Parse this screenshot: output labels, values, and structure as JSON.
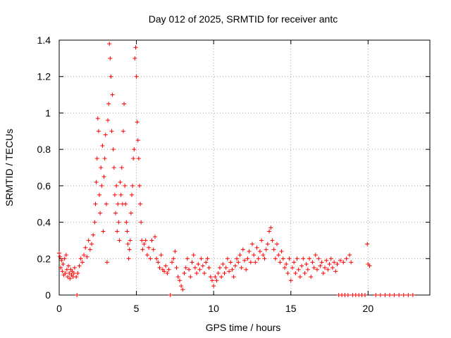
{
  "chart_data": {
    "type": "scatter",
    "title": "Day 012 of 2025, SRMTID for receiver antc",
    "xlabel": "GPS time / hours",
    "ylabel": "SRMTID / TECUs",
    "xlim": [
      0,
      24
    ],
    "ylim": [
      0,
      1.4
    ],
    "x_ticks": [
      0,
      5,
      10,
      15,
      20
    ],
    "y_ticks": [
      0,
      0.2,
      0.4,
      0.6,
      0.8,
      1,
      1.2,
      1.4
    ],
    "y_tick_labels": [
      "0",
      "0.2",
      "0.4",
      "0.6",
      "0.8",
      "1",
      "1.2",
      "1.4"
    ],
    "grid": true,
    "marker": "plus",
    "color": "#ff0000",
    "series": [
      {
        "name": "SRMTID",
        "points": [
          [
            0.0,
            0.23
          ],
          [
            0.05,
            0.21
          ],
          [
            0.1,
            0.15
          ],
          [
            0.15,
            0.19
          ],
          [
            0.2,
            0.13
          ],
          [
            0.25,
            0.17
          ],
          [
            0.3,
            0.11
          ],
          [
            0.35,
            0.2
          ],
          [
            0.4,
            0.12
          ],
          [
            0.45,
            0.22
          ],
          [
            0.5,
            0.14
          ],
          [
            0.55,
            0.1
          ],
          [
            0.6,
            0.16
          ],
          [
            0.65,
            0.12
          ],
          [
            0.7,
            0.09
          ],
          [
            0.75,
            0.14
          ],
          [
            0.8,
            0.11
          ],
          [
            0.85,
            0.13
          ],
          [
            0.9,
            0.1
          ],
          [
            0.95,
            0.12
          ],
          [
            1.0,
            0.15
          ],
          [
            1.1,
            0.1
          ],
          [
            1.15,
            0.0
          ],
          [
            1.2,
            0.12
          ],
          [
            1.3,
            0.16
          ],
          [
            1.4,
            0.2
          ],
          [
            1.5,
            0.18
          ],
          [
            1.6,
            0.22
          ],
          [
            1.7,
            0.26
          ],
          [
            1.8,
            0.21
          ],
          [
            1.9,
            0.3
          ],
          [
            2.0,
            0.25
          ],
          [
            2.1,
            0.28
          ],
          [
            2.2,
            0.33
          ],
          [
            2.3,
            0.4
          ],
          [
            2.35,
            0.5
          ],
          [
            2.4,
            0.62
          ],
          [
            2.45,
            0.75
          ],
          [
            2.5,
            0.97
          ],
          [
            2.55,
            0.9
          ],
          [
            2.6,
            0.55
          ],
          [
            2.65,
            0.45
          ],
          [
            2.7,
            0.7
          ],
          [
            2.75,
            0.6
          ],
          [
            2.8,
            0.82
          ],
          [
            2.85,
            0.35
          ],
          [
            2.9,
            0.65
          ],
          [
            2.95,
            0.75
          ],
          [
            3.0,
            0.88
          ],
          [
            3.05,
            0.5
          ],
          [
            3.1,
            0.18
          ],
          [
            3.15,
            0.96
          ],
          [
            3.2,
            1.05
          ],
          [
            3.25,
            1.38
          ],
          [
            3.3,
            1.3
          ],
          [
            3.35,
            1.2
          ],
          [
            3.4,
            0.9
          ],
          [
            3.45,
            1.1
          ],
          [
            3.5,
            0.8
          ],
          [
            3.55,
            0.7
          ],
          [
            3.6,
            0.55
          ],
          [
            3.65,
            0.45
          ],
          [
            3.7,
            0.6
          ],
          [
            3.75,
            0.35
          ],
          [
            3.8,
            0.5
          ],
          [
            3.85,
            0.4
          ],
          [
            3.9,
            0.3
          ],
          [
            3.95,
            0.62
          ],
          [
            4.0,
            0.55
          ],
          [
            4.05,
            0.7
          ],
          [
            4.1,
            0.5
          ],
          [
            4.15,
            0.9
          ],
          [
            4.2,
            1.05
          ],
          [
            4.25,
            0.6
          ],
          [
            4.3,
            0.5
          ],
          [
            4.35,
            0.4
          ],
          [
            4.4,
            0.35
          ],
          [
            4.45,
            0.28
          ],
          [
            4.5,
            0.2
          ],
          [
            4.55,
            0.25
          ],
          [
            4.6,
            0.3
          ],
          [
            4.65,
            0.45
          ],
          [
            4.7,
            0.55
          ],
          [
            4.75,
            0.6
          ],
          [
            4.8,
            0.75
          ],
          [
            4.85,
            0.8
          ],
          [
            4.9,
            1.3
          ],
          [
            4.95,
            1.36
          ],
          [
            5.0,
            1.2
          ],
          [
            5.05,
            0.95
          ],
          [
            5.1,
            0.85
          ],
          [
            5.15,
            0.75
          ],
          [
            5.2,
            0.6
          ],
          [
            5.25,
            0.5
          ],
          [
            5.3,
            0.4
          ],
          [
            5.35,
            0.3
          ],
          [
            5.4,
            0.25
          ],
          [
            5.5,
            0.28
          ],
          [
            5.6,
            0.3
          ],
          [
            5.7,
            0.22
          ],
          [
            5.8,
            0.26
          ],
          [
            5.9,
            0.2
          ],
          [
            6.0,
            0.3
          ],
          [
            6.1,
            0.25
          ],
          [
            6.2,
            0.32
          ],
          [
            6.3,
            0.2
          ],
          [
            6.4,
            0.18
          ],
          [
            6.5,
            0.15
          ],
          [
            6.6,
            0.22
          ],
          [
            6.7,
            0.14
          ],
          [
            6.8,
            0.13
          ],
          [
            6.9,
            0.16
          ],
          [
            7.0,
            0.12
          ],
          [
            7.1,
            0.14
          ],
          [
            7.2,
            0.0
          ],
          [
            7.3,
            0.18
          ],
          [
            7.4,
            0.2
          ],
          [
            7.5,
            0.24
          ],
          [
            7.6,
            0.15
          ],
          [
            7.7,
            0.1
          ],
          [
            7.8,
            0.08
          ],
          [
            7.9,
            0.05
          ],
          [
            8.0,
            0.03
          ],
          [
            8.1,
            0.12
          ],
          [
            8.2,
            0.15
          ],
          [
            8.3,
            0.2
          ],
          [
            8.4,
            0.14
          ],
          [
            8.5,
            0.1
          ],
          [
            8.6,
            0.18
          ],
          [
            8.7,
            0.22
          ],
          [
            8.8,
            0.15
          ],
          [
            8.9,
            0.12
          ],
          [
            9.0,
            0.17
          ],
          [
            9.1,
            0.14
          ],
          [
            9.2,
            0.2
          ],
          [
            9.3,
            0.16
          ],
          [
            9.4,
            0.12
          ],
          [
            9.5,
            0.18
          ],
          [
            9.6,
            0.2
          ],
          [
            9.7,
            0.15
          ],
          [
            9.8,
            0.1
          ],
          [
            9.9,
            0.08
          ],
          [
            10.0,
            0.05
          ],
          [
            10.1,
            0.1
          ],
          [
            10.2,
            0.08
          ],
          [
            10.3,
            0.12
          ],
          [
            10.4,
            0.15
          ],
          [
            10.5,
            0.1
          ],
          [
            10.6,
            0.17
          ],
          [
            10.7,
            0.12
          ],
          [
            10.8,
            0.15
          ],
          [
            10.9,
            0.2
          ],
          [
            11.0,
            0.13
          ],
          [
            11.1,
            0.18
          ],
          [
            11.2,
            0.14
          ],
          [
            11.3,
            0.1
          ],
          [
            11.4,
            0.16
          ],
          [
            11.5,
            0.2
          ],
          [
            11.6,
            0.18
          ],
          [
            11.7,
            0.22
          ],
          [
            11.8,
            0.15
          ],
          [
            11.9,
            0.25
          ],
          [
            12.0,
            0.19
          ],
          [
            12.1,
            0.14
          ],
          [
            12.2,
            0.2
          ],
          [
            12.3,
            0.24
          ],
          [
            12.4,
            0.18
          ],
          [
            12.5,
            0.28
          ],
          [
            12.6,
            0.22
          ],
          [
            12.7,
            0.18
          ],
          [
            12.8,
            0.26
          ],
          [
            12.9,
            0.2
          ],
          [
            13.0,
            0.24
          ],
          [
            13.1,
            0.3
          ],
          [
            13.2,
            0.22
          ],
          [
            13.3,
            0.2
          ],
          [
            13.4,
            0.25
          ],
          [
            13.5,
            0.28
          ],
          [
            13.6,
            0.35
          ],
          [
            13.7,
            0.37
          ],
          [
            13.8,
            0.3
          ],
          [
            13.9,
            0.25
          ],
          [
            14.0,
            0.2
          ],
          [
            14.1,
            0.28
          ],
          [
            14.2,
            0.22
          ],
          [
            14.3,
            0.18
          ],
          [
            14.4,
            0.24
          ],
          [
            14.5,
            0.2
          ],
          [
            14.6,
            0.15
          ],
          [
            14.7,
            0.17
          ],
          [
            14.8,
            0.12
          ],
          [
            14.9,
            0.2
          ],
          [
            15.0,
            0.08
          ],
          [
            15.1,
            0.15
          ],
          [
            15.2,
            0.18
          ],
          [
            15.3,
            0.12
          ],
          [
            15.4,
            0.2
          ],
          [
            15.5,
            0.14
          ],
          [
            15.6,
            0.1
          ],
          [
            15.7,
            0.16
          ],
          [
            15.8,
            0.2
          ],
          [
            15.9,
            0.12
          ],
          [
            16.0,
            0.17
          ],
          [
            16.1,
            0.14
          ],
          [
            16.2,
            0.2
          ],
          [
            16.3,
            0.1
          ],
          [
            16.4,
            0.18
          ],
          [
            16.5,
            0.15
          ],
          [
            16.6,
            0.22
          ],
          [
            16.7,
            0.14
          ],
          [
            16.8,
            0.2
          ],
          [
            16.9,
            0.16
          ],
          [
            17.0,
            0.18
          ],
          [
            17.1,
            0.12
          ],
          [
            17.2,
            0.15
          ],
          [
            17.3,
            0.19
          ],
          [
            17.4,
            0.14
          ],
          [
            17.5,
            0.17
          ],
          [
            17.6,
            0.2
          ],
          [
            17.7,
            0.15
          ],
          [
            17.8,
            0.18
          ],
          [
            17.9,
            0.13
          ],
          [
            18.0,
            0.17
          ],
          [
            18.1,
            0.0
          ],
          [
            18.2,
            0.19
          ],
          [
            18.3,
            0.0
          ],
          [
            18.4,
            0.18
          ],
          [
            18.5,
            0.0
          ],
          [
            18.6,
            0.2
          ],
          [
            18.7,
            0.0
          ],
          [
            18.8,
            0.22
          ],
          [
            18.9,
            0.18
          ],
          [
            19.0,
            0.0
          ],
          [
            19.2,
            0.0
          ],
          [
            19.4,
            0.0
          ],
          [
            19.6,
            0.0
          ],
          [
            19.8,
            0.0
          ],
          [
            19.95,
            0.28
          ],
          [
            20.0,
            0.17
          ],
          [
            20.1,
            0.16
          ],
          [
            20.5,
            0.0
          ],
          [
            20.8,
            0.0
          ],
          [
            21.1,
            0.0
          ],
          [
            21.4,
            0.0
          ],
          [
            21.7,
            0.0
          ],
          [
            22.0,
            0.0
          ],
          [
            22.3,
            0.0
          ],
          [
            22.6,
            0.0
          ],
          [
            22.9,
            0.0
          ]
        ]
      }
    ]
  }
}
